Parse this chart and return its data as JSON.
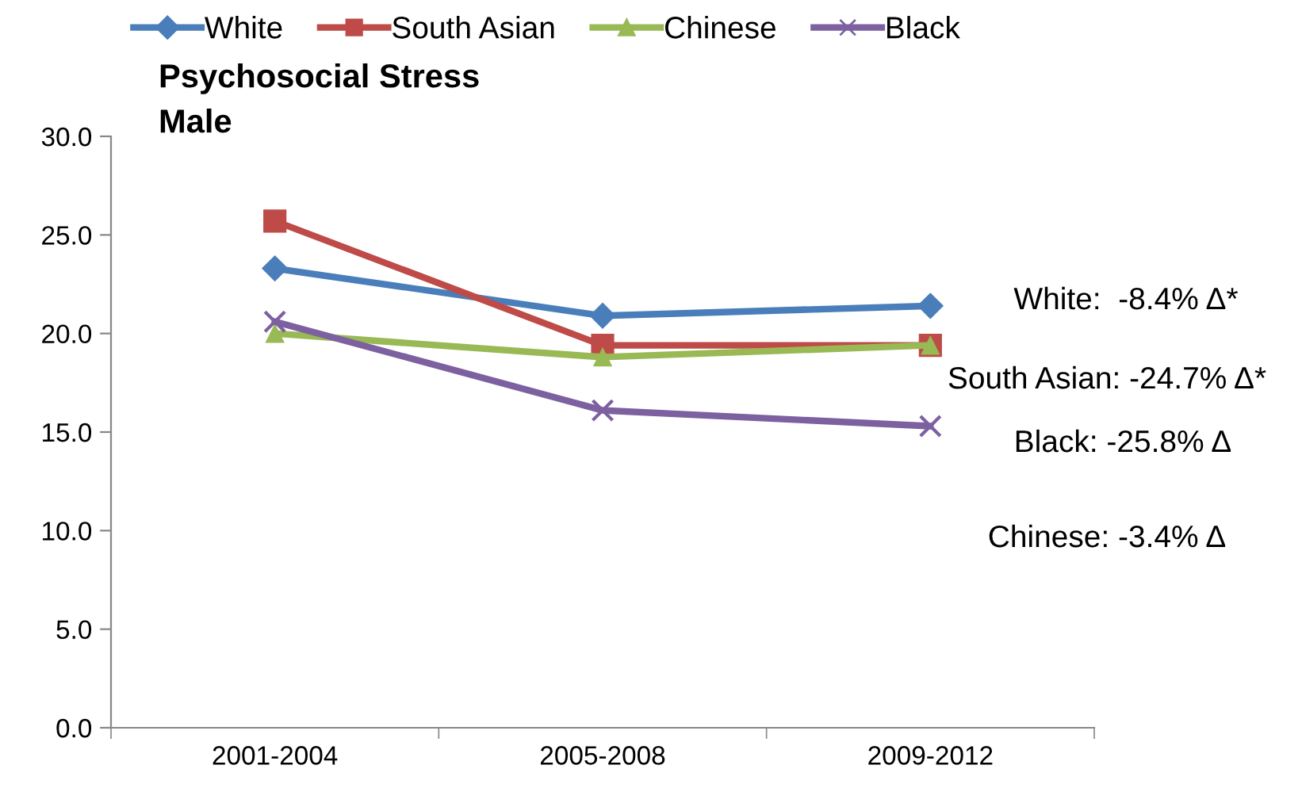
{
  "chart_data": {
    "type": "line",
    "title": "Psychosocial Stress\nMale",
    "categories": [
      "2001-2004",
      "2005-2008",
      "2009-2012"
    ],
    "series": [
      {
        "name": "White",
        "color": "#4a7ebb",
        "values": [
          23.3,
          20.9,
          21.4
        ],
        "marker": "diamond"
      },
      {
        "name": "South Asian",
        "color": "#be4b48",
        "values": [
          25.7,
          19.4,
          19.4
        ],
        "marker": "square"
      },
      {
        "name": "Chinese",
        "color": "#98b954",
        "values": [
          20.0,
          18.8,
          19.4
        ],
        "marker": "triangle"
      },
      {
        "name": "Black",
        "color": "#7d60a0",
        "values": [
          20.6,
          16.1,
          15.3
        ],
        "marker": "cross"
      }
    ],
    "ylim": [
      0,
      30
    ],
    "yticks": [
      {
        "value": 0,
        "label": "0.0"
      },
      {
        "value": 5,
        "label": "5.0"
      },
      {
        "value": 10,
        "label": "10.0"
      },
      {
        "value": 15,
        "label": "15.0"
      },
      {
        "value": 20,
        "label": "20.0"
      },
      {
        "value": 25,
        "label": "25.0"
      },
      {
        "value": 30,
        "label": "30.0"
      }
    ],
    "grid": false,
    "legend": "top",
    "line_style": "solid",
    "annotations": [
      "White:  -8.4% Δ*",
      "South Asian: -24.7% Δ*",
      "Black: -25.8% Δ",
      "Chinese: -3.4% Δ"
    ]
  }
}
